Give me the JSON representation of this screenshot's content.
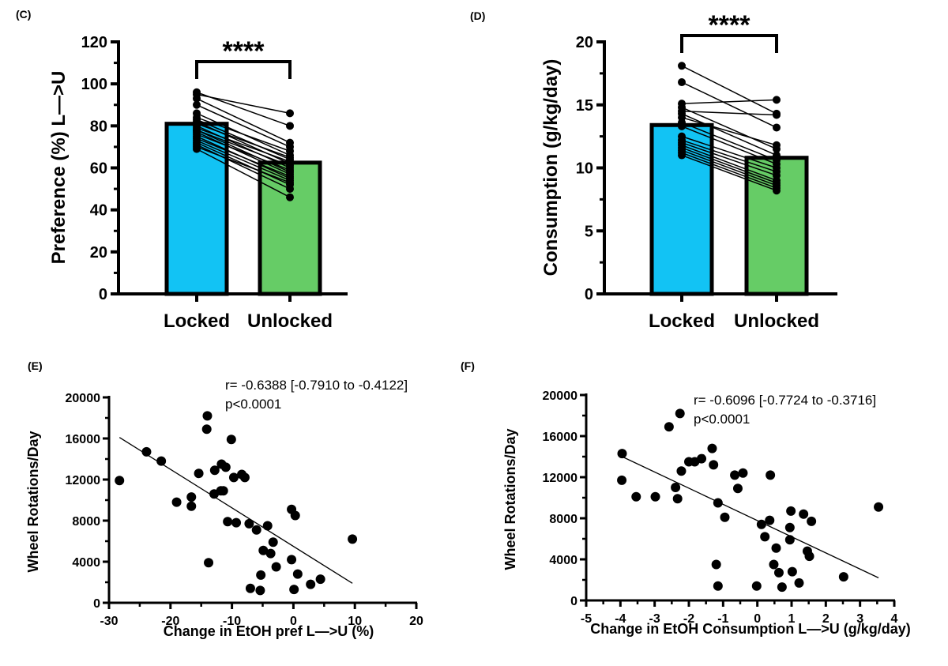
{
  "colors": {
    "locked": "#12c3f4",
    "unlocked": "#66cc66",
    "ink": "#000000"
  },
  "chart_data": [
    {
      "panel": "(C)",
      "type": "bar",
      "ylabel": "Preference (%)  L—>U",
      "categories": [
        "Locked",
        "Unlocked"
      ],
      "values": [
        81,
        62.5
      ],
      "ylim": [
        0,
        120
      ],
      "yticks": [
        0,
        20,
        40,
        60,
        80,
        100,
        120
      ],
      "significance": "****",
      "paired_points": {
        "Locked": [
          96,
          95,
          93,
          90,
          86,
          84,
          83,
          82,
          81,
          80,
          79,
          78,
          78,
          77,
          76,
          75,
          74,
          73,
          72,
          71,
          70,
          69
        ],
        "Unlocked": [
          80,
          86,
          72,
          70,
          66,
          68,
          64,
          62,
          65,
          60,
          63,
          58,
          61,
          57,
          59,
          55,
          56,
          54,
          52,
          50,
          53,
          46
        ]
      }
    },
    {
      "panel": "(D)",
      "type": "bar",
      "ylabel": "Consumption (g/kg/day)",
      "categories": [
        "Locked",
        "Unlocked"
      ],
      "values": [
        13.4,
        10.8
      ],
      "ylim": [
        0,
        20
      ],
      "yticks": [
        0,
        5,
        10,
        15,
        20
      ],
      "significance": "****",
      "paired_points": {
        "Locked": [
          18.1,
          16.8,
          15.1,
          14.8,
          14.5,
          14.3,
          14.0,
          13.6,
          13.3,
          12.5,
          12.2,
          12.0,
          11.8,
          11.6,
          11.4,
          11.2,
          11.0
        ],
        "Unlocked": [
          14.3,
          13.2,
          15.4,
          11.5,
          14.2,
          11.0,
          11.8,
          10.6,
          10.3,
          10.0,
          9.7,
          9.4,
          9.0,
          8.8,
          8.6,
          8.4,
          8.2
        ]
      }
    },
    {
      "panel": "(E)",
      "type": "scatter",
      "xlabel": "Change in EtOH pref L—>U (%)",
      "ylabel": "Wheel Rotations/Day",
      "xlim": [
        -30,
        20
      ],
      "xticks": [
        -30,
        -20,
        -10,
        0,
        10,
        20
      ],
      "ylim": [
        0,
        20000
      ],
      "yticks": [
        0,
        4000,
        8000,
        12000,
        16000,
        20000
      ],
      "annotation": [
        "r= -0.6388 [-0.7910 to -0.4122]",
        "p<0.0001"
      ],
      "regression": [
        [
          -28.3,
          16100
        ],
        [
          9.6,
          1900
        ]
      ],
      "points": [
        [
          -28.3,
          11900
        ],
        [
          -23.9,
          14700
        ],
        [
          -21.5,
          13800
        ],
        [
          -19.0,
          9800
        ],
        [
          -16.6,
          10300
        ],
        [
          -16.6,
          9400
        ],
        [
          -15.4,
          12600
        ],
        [
          -14.1,
          16900
        ],
        [
          -14.0,
          18200
        ],
        [
          -13.8,
          3900
        ],
        [
          -12.8,
          12900
        ],
        [
          -12.9,
          10600
        ],
        [
          -11.8,
          10900
        ],
        [
          -11.4,
          10900
        ],
        [
          -11.7,
          13500
        ],
        [
          -11.0,
          13200
        ],
        [
          -10.7,
          7900
        ],
        [
          -10.1,
          15900
        ],
        [
          -9.7,
          12200
        ],
        [
          -9.3,
          7800
        ],
        [
          -8.4,
          12500
        ],
        [
          -7.9,
          12200
        ],
        [
          -7.2,
          7700
        ],
        [
          -7.0,
          1400
        ],
        [
          -6.0,
          7100
        ],
        [
          -5.4,
          1200
        ],
        [
          -5.3,
          2700
        ],
        [
          -4.9,
          5100
        ],
        [
          -4.2,
          7500
        ],
        [
          -3.7,
          4800
        ],
        [
          -3.3,
          5900
        ],
        [
          -2.8,
          3500
        ],
        [
          -0.3,
          4200
        ],
        [
          -0.3,
          9100
        ],
        [
          0.3,
          8500
        ],
        [
          0.1,
          1300
        ],
        [
          0.7,
          2800
        ],
        [
          2.8,
          1800
        ],
        [
          4.4,
          2300
        ],
        [
          9.6,
          6200
        ]
      ]
    },
    {
      "panel": "(F)",
      "type": "scatter",
      "xlabel": "Change in EtOH Consumption L—>U (g/kg/day)",
      "ylabel": "Wheel Rotations/Day",
      "xlim": [
        -5,
        4
      ],
      "xticks": [
        -5,
        -4,
        -3,
        -2,
        -1,
        0,
        1,
        2,
        3,
        4
      ],
      "ylim": [
        0,
        20000
      ],
      "yticks": [
        0,
        4000,
        8000,
        12000,
        16000,
        20000
      ],
      "annotation": [
        "r= -0.6096 [-0.7724 to -0.3716]",
        "p<0.0001"
      ],
      "regression": [
        [
          -3.95,
          14000
        ],
        [
          3.54,
          2200
        ]
      ],
      "points": [
        [
          -3.95,
          14300
        ],
        [
          -3.96,
          11700
        ],
        [
          -3.54,
          10100
        ],
        [
          -2.98,
          10100
        ],
        [
          -2.58,
          16900
        ],
        [
          -2.26,
          18200
        ],
        [
          -2.39,
          11000
        ],
        [
          -2.33,
          9900
        ],
        [
          -2.22,
          12600
        ],
        [
          -2.0,
          13500
        ],
        [
          -1.83,
          13500
        ],
        [
          -1.63,
          13800
        ],
        [
          -1.32,
          14800
        ],
        [
          -1.28,
          13200
        ],
        [
          -1.15,
          9500
        ],
        [
          -1.2,
          3500
        ],
        [
          -1.15,
          1400
        ],
        [
          -0.95,
          8100
        ],
        [
          -0.66,
          12200
        ],
        [
          -0.42,
          12400
        ],
        [
          -0.57,
          10900
        ],
        [
          -0.02,
          1400
        ],
        [
          0.12,
          7400
        ],
        [
          0.22,
          6200
        ],
        [
          0.36,
          7800
        ],
        [
          0.38,
          12200
        ],
        [
          0.55,
          5100
        ],
        [
          0.48,
          3500
        ],
        [
          0.63,
          2700
        ],
        [
          0.72,
          1300
        ],
        [
          0.98,
          8700
        ],
        [
          0.95,
          7100
        ],
        [
          0.95,
          5900
        ],
        [
          1.02,
          2800
        ],
        [
          1.22,
          1700
        ],
        [
          1.35,
          8400
        ],
        [
          1.58,
          7700
        ],
        [
          1.46,
          4800
        ],
        [
          1.52,
          4300
        ],
        [
          2.52,
          2300
        ],
        [
          3.54,
          9100
        ]
      ]
    }
  ]
}
